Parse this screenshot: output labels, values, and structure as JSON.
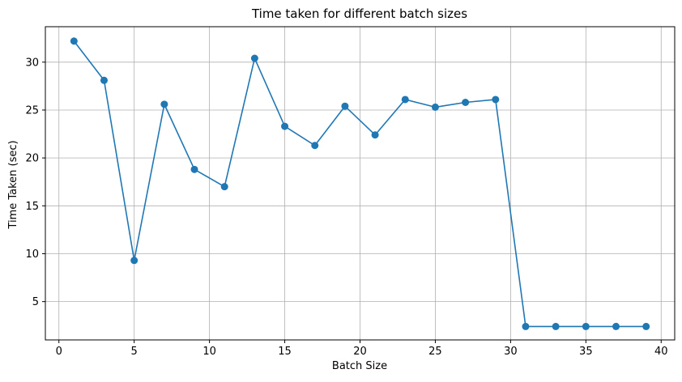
{
  "chart_data": {
    "type": "line",
    "title": "Time taken for different batch sizes",
    "xlabel": "Batch Size",
    "ylabel": "Time Taken (sec)",
    "xlim": [
      -0.9,
      40.9
    ],
    "ylim": [
      1.0,
      33.7
    ],
    "xticks": [
      0,
      5,
      10,
      15,
      20,
      25,
      30,
      35,
      40
    ],
    "yticks": [
      5,
      10,
      15,
      20,
      25,
      30
    ],
    "grid": true,
    "legend": "none",
    "line_color": "#1f77b4",
    "marker": "circle",
    "x": [
      1,
      3,
      5,
      7,
      9,
      11,
      13,
      15,
      17,
      19,
      21,
      23,
      25,
      27,
      29,
      31,
      33,
      35,
      37,
      39
    ],
    "y": [
      32.2,
      28.1,
      9.3,
      25.6,
      18.8,
      17.0,
      30.4,
      23.3,
      21.3,
      25.4,
      22.4,
      26.1,
      25.3,
      25.8,
      26.1,
      2.4,
      2.4,
      2.4,
      2.4,
      2.4
    ]
  }
}
